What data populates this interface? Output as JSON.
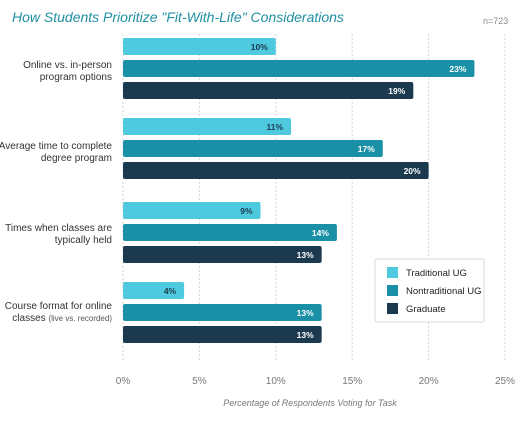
{
  "colors": {
    "title": "#1f8fa3",
    "nlabel": "#8a8a8a",
    "traditional": "#4fc9dd",
    "nontraditional": "#1a90a6",
    "graduate": "#1b3a4f",
    "grid": "#d6d6d6"
  },
  "chart_data": {
    "type": "bar",
    "orientation": "horizontal",
    "title": "How Students Prioritize \"Fit-With-Life\" Considerations",
    "sample": "n=723",
    "xlabel": "Percentage of Respondents Voting for Task",
    "xlim": [
      0,
      25
    ],
    "xticks": [
      "0%",
      "5%",
      "10%",
      "15%",
      "20%",
      "25%"
    ],
    "grid": "vertical",
    "legend_position": "bottom-right",
    "categories": [
      {
        "lines": [
          "Online vs. in-person",
          "program options"
        ],
        "sub": ""
      },
      {
        "lines": [
          "Average time to complete",
          "degree program"
        ],
        "sub": ""
      },
      {
        "lines": [
          "Times when classes are",
          "typically held"
        ],
        "sub": ""
      },
      {
        "lines": [
          "Course format for online",
          "classes"
        ],
        "sub": "(live vs. recorded)"
      }
    ],
    "series": [
      {
        "name": "Traditional UG",
        "values": [
          10,
          11,
          9,
          4
        ],
        "labels": [
          "10%",
          "11%",
          "9%",
          "4%"
        ]
      },
      {
        "name": "Nontraditional UG",
        "values": [
          23,
          17,
          14,
          13
        ],
        "labels": [
          "23%",
          "17%",
          "14%",
          "13%"
        ]
      },
      {
        "name": "Graduate",
        "values": [
          19,
          20,
          13,
          13
        ],
        "labels": [
          "19%",
          "20%",
          "13%",
          "13%"
        ]
      }
    ]
  }
}
